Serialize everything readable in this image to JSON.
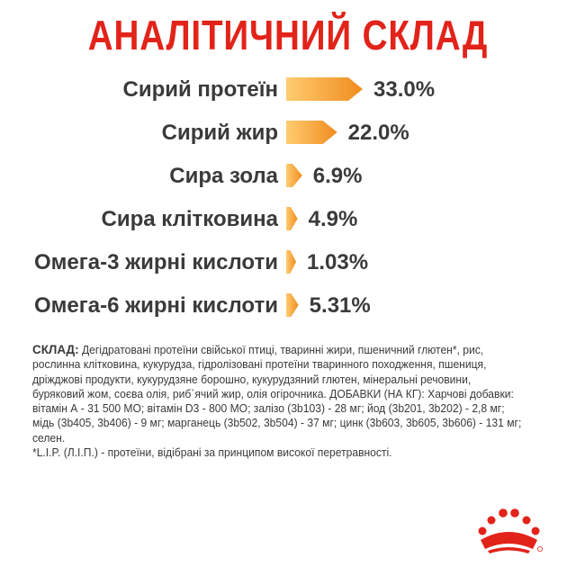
{
  "title": "АНАЛІТИЧНИЙ СКЛАД",
  "colors": {
    "title": "#e2231a",
    "bar_light": "#ffcc70",
    "bar_dark": "#f08c1e",
    "text": "#3a3a3a",
    "logo": "#e2231a"
  },
  "chart_data": {
    "type": "bar",
    "orientation": "horizontal",
    "categories": [
      "Сирий протеїн",
      "Сирий жир",
      "Сира зола",
      "Сира клітковина",
      "Омега-3 жирні кислоти",
      "Омега-6 жирні кислоти"
    ],
    "values": [
      33.0,
      22.0,
      6.9,
      4.9,
      1.03,
      5.31
    ],
    "value_labels": [
      "33.0%",
      "22.0%",
      "6.9%",
      "4.9%",
      "1.03%",
      "5.31%"
    ],
    "unit": "%",
    "xlim": [
      0,
      33
    ],
    "grid": false,
    "legend": "none"
  },
  "composition": {
    "lead": "СКЛАД:",
    "text": " Дегідратовані протеїни свійської птиці, тваринні жири, пшеничний глютен*, рис, рослинна клітковина, кукурудза, гідролізовані протеїни тваринного походження, пшениця, дріжджові продукти, кукурудзяне борошно, кукурудзяний глютен, мінеральні речовини, буряковий жом, соєва олія, риб`ячий жир, олія огірочника. ДОБАВКИ (НА КГ): Харчові добавки: вітамін А - 31 500 МО; вітамін D3 - 800 МО; залізо (3b103) - 28 мг; йод (3b201, 3b202) - 2,8 мг; мідь (3b405, 3b406) - 9 мг; марганець (3b502, 3b504) - 37 мг; цинк (3b603, 3b605, 3b606) - 131 мг; селен.",
    "footnote": "*L.I.P. (Л.І.П.) - протеїни, відібрані за принципом високої перетравності."
  },
  "logo": {
    "icon": "royal-canin-crown-icon"
  }
}
